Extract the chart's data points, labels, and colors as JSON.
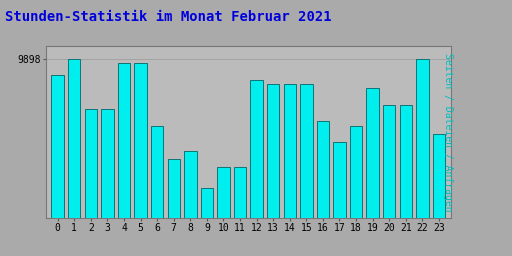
{
  "title": "Stunden-Statistik im Monat Februar 2021",
  "title_color": "#0000dd",
  "title_fontsize": 10,
  "ylabel_right": "Seiten / Dateien / Anfragen",
  "ylabel_right_color": "#00bbbb",
  "categories": [
    0,
    1,
    2,
    3,
    4,
    5,
    6,
    7,
    8,
    9,
    10,
    11,
    12,
    13,
    14,
    15,
    16,
    17,
    18,
    19,
    20,
    21,
    22,
    23
  ],
  "values": [
    9894,
    9898,
    9886,
    9886,
    9897,
    9897,
    9882,
    9874,
    9876,
    9867,
    9872,
    9872,
    9893,
    9892,
    9892,
    9892,
    9883,
    9878,
    9882,
    9891,
    9887,
    9887,
    9898,
    9880
  ],
  "bar_face_color": "#00eeee",
  "bar_edge_color": "#006666",
  "background_color": "#aaaaaa",
  "plot_bg_color": "#bbbbbb",
  "grid_color": "#999999",
  "tick_color": "#000000",
  "ymin": 9860,
  "ymax": 9901,
  "ytick_values": [
    9898
  ],
  "bar_width": 0.75
}
